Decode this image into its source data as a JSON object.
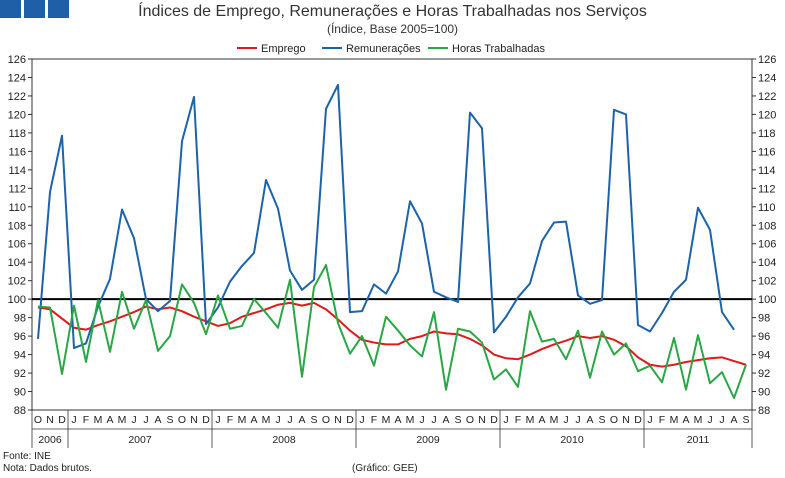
{
  "header": {
    "title": "Índices de Emprego, Remunerações e Horas Trabalhadas nos Serviços",
    "subtitle": "(Índice, Base 2005=100)"
  },
  "footer": {
    "source": "Fonte: INE",
    "note": "Nota: Dados brutos.",
    "credit": "(Gráfico: GEE)"
  },
  "chart_data": {
    "type": "line",
    "title": "Índices de Emprego, Remunerações e Horas Trabalhadas nos Serviços",
    "subtitle": "(Índice, Base 2005=100)",
    "legend_position": "top-center",
    "grid": false,
    "reference_line": 100,
    "ylim": [
      88,
      126
    ],
    "yticks": [
      88,
      90,
      92,
      94,
      96,
      98,
      100,
      102,
      104,
      106,
      108,
      110,
      112,
      114,
      116,
      118,
      120,
      122,
      124,
      126
    ],
    "month_labels": [
      "O",
      "N",
      "D",
      "J",
      "F",
      "M",
      "A",
      "M",
      "J",
      "J",
      "A",
      "S",
      "O",
      "N",
      "D",
      "J",
      "F",
      "M",
      "A",
      "M",
      "J",
      "J",
      "A",
      "S",
      "O",
      "N",
      "D",
      "J",
      "F",
      "M",
      "A",
      "M",
      "J",
      "J",
      "A",
      "S",
      "O",
      "N",
      "D",
      "J",
      "F",
      "M",
      "A",
      "M",
      "J",
      "J",
      "A",
      "S",
      "O",
      "N",
      "D",
      "J",
      "F",
      "M",
      "A",
      "M",
      "J",
      "J",
      "A",
      "S"
    ],
    "year_labels": [
      {
        "label": "2006",
        "start": 0,
        "end": 3
      },
      {
        "label": "2007",
        "start": 3,
        "end": 15
      },
      {
        "label": "2008",
        "start": 15,
        "end": 27
      },
      {
        "label": "2009",
        "start": 27,
        "end": 39
      },
      {
        "label": "2010",
        "start": 39,
        "end": 51
      },
      {
        "label": "2011",
        "start": 51,
        "end": 60
      }
    ],
    "series": [
      {
        "name": "Emprego",
        "color": "#e01a1a",
        "values": [
          99.1,
          98.9,
          97.9,
          96.9,
          96.7,
          97.2,
          97.6,
          98.1,
          98.6,
          99.2,
          98.9,
          99.1,
          98.7,
          98.1,
          97.6,
          97.1,
          97.4,
          98.1,
          98.5,
          98.9,
          99.4,
          99.6,
          99.3,
          99.6,
          98.9,
          97.8,
          96.6,
          95.6,
          95.3,
          95.1,
          95.1,
          95.7,
          96.0,
          96.5,
          96.3,
          96.2,
          95.7,
          95.0,
          94.0,
          93.6,
          93.5,
          94.0,
          94.6,
          95.1,
          95.5,
          96.0,
          95.8,
          96.0,
          95.6,
          94.9,
          93.7,
          92.9,
          92.7,
          92.9,
          93.2,
          93.4,
          93.6,
          93.7,
          93.3,
          92.9
        ]
      },
      {
        "name": "Remunerações",
        "color": "#1c63aa",
        "values": [
          95.7,
          111.6,
          117.7,
          94.7,
          95.2,
          99.2,
          102.2,
          109.7,
          106.6,
          100.0,
          98.7,
          99.8,
          117.1,
          121.9,
          97.3,
          99.1,
          101.9,
          103.6,
          105.0,
          112.9,
          109.8,
          103.1,
          101.0,
          102.1,
          120.6,
          123.2,
          98.6,
          98.7,
          101.6,
          100.6,
          103.0,
          110.6,
          108.2,
          100.8,
          100.2,
          99.7,
          120.2,
          118.5,
          96.4,
          98.1,
          100.2,
          101.7,
          106.3,
          108.3,
          108.4,
          100.4,
          99.5,
          99.9,
          120.5,
          120.0,
          97.2,
          96.5,
          98.5,
          100.8,
          102.1,
          109.9,
          107.5,
          98.6,
          96.7,
          null
        ]
      },
      {
        "name": "Horas Trabalhadas",
        "color": "#2aa745",
        "values": [
          99.2,
          99.1,
          91.9,
          99.3,
          93.2,
          99.9,
          94.3,
          100.8,
          96.8,
          99.9,
          94.4,
          96.0,
          101.6,
          99.6,
          96.2,
          100.4,
          96.8,
          97.1,
          100.0,
          98.5,
          96.9,
          102.1,
          91.6,
          101.3,
          103.7,
          97.4,
          94.1,
          96.0,
          92.8,
          98.1,
          96.6,
          95.0,
          93.8,
          98.6,
          90.2,
          96.8,
          96.5,
          95.3,
          91.3,
          92.4,
          90.5,
          98.7,
          95.4,
          95.7,
          93.5,
          96.6,
          91.5,
          96.5,
          94.0,
          95.2,
          92.2,
          92.8,
          91.0,
          95.8,
          90.2,
          96.1,
          90.9,
          92.1,
          89.3,
          92.9
        ]
      }
    ]
  }
}
